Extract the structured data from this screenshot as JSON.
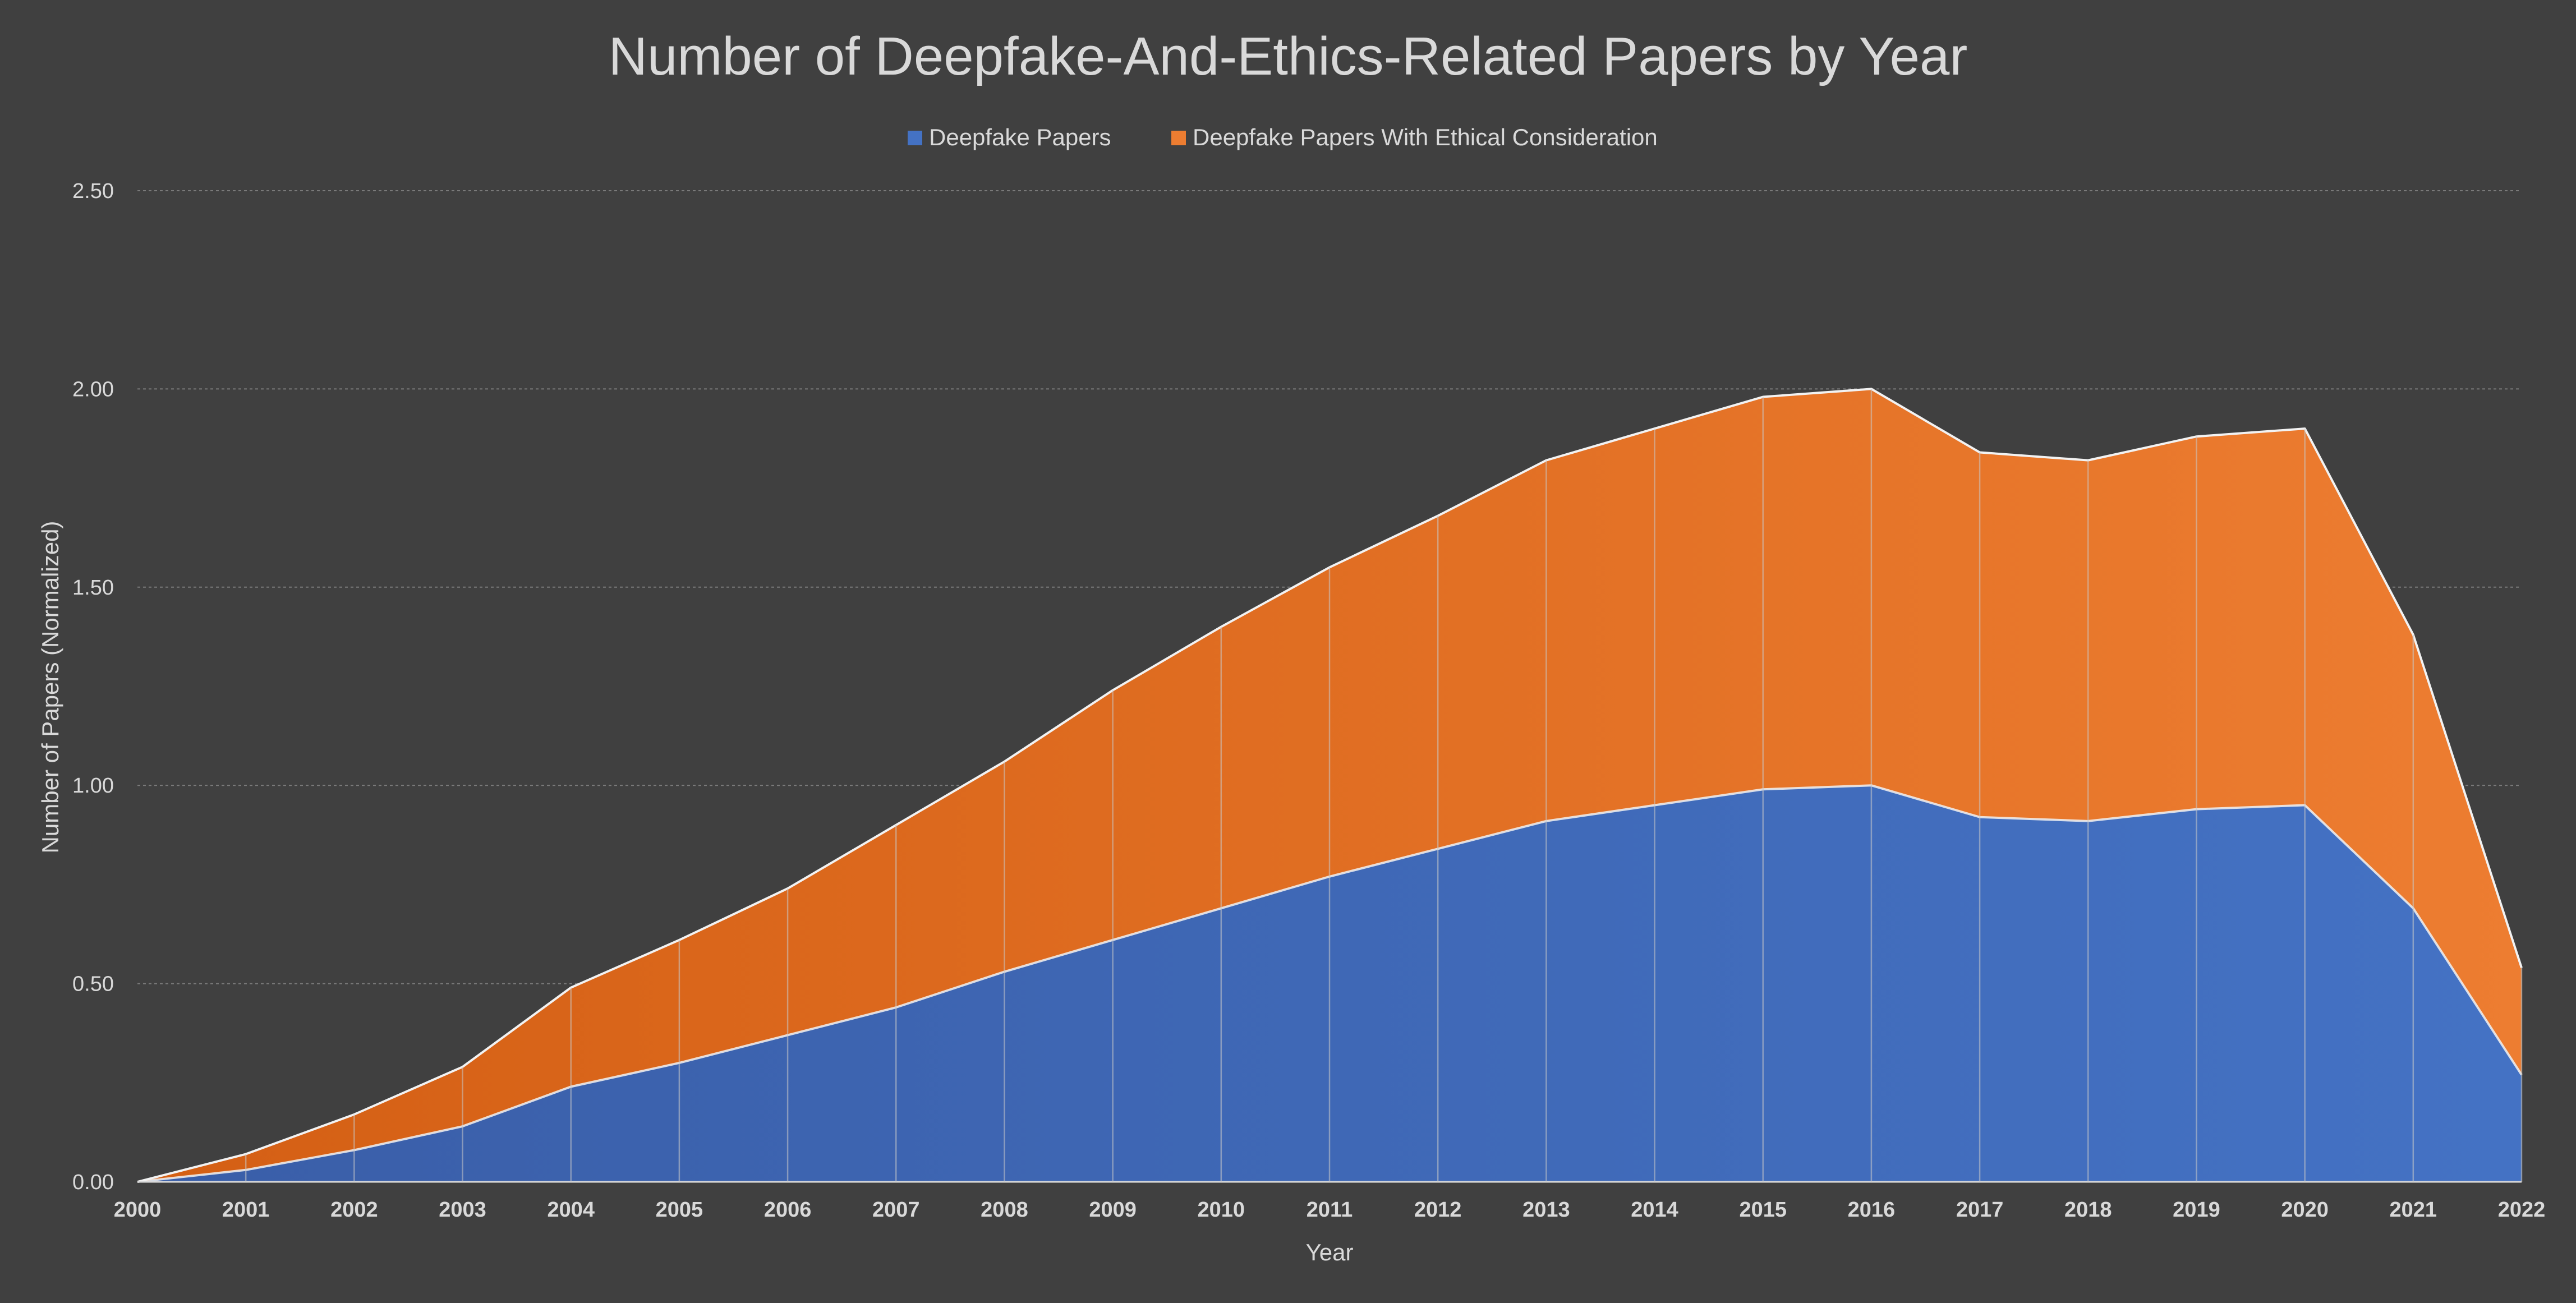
{
  "chart_data": {
    "type": "area",
    "stacked": true,
    "title": "Number of Deepfake-And-Ethics-Related Papers by Year",
    "xlabel": "Year",
    "ylabel": "Number of Papers (Normalized)",
    "ylim": [
      0,
      2.5
    ],
    "yticks": [
      "0.00",
      "0.50",
      "1.00",
      "1.50",
      "2.00",
      "2.50"
    ],
    "grid": true,
    "legend_position": "top",
    "categories": [
      "2000",
      "2001",
      "2002",
      "2003",
      "2004",
      "2005",
      "2006",
      "2007",
      "2008",
      "2009",
      "2010",
      "2011",
      "2012",
      "2013",
      "2014",
      "2015",
      "2016",
      "2017",
      "2018",
      "2019",
      "2020",
      "2021",
      "2022"
    ],
    "series": [
      {
        "name": "Deepfake Papers",
        "color": "#4472c4",
        "values": [
          0,
          0.03,
          0.08,
          0.14,
          0.24,
          0.3,
          0.37,
          0.44,
          0.53,
          0.61,
          0.69,
          0.77,
          0.84,
          0.91,
          0.95,
          0.99,
          1.0,
          0.92,
          0.91,
          0.94,
          0.95,
          0.69,
          0.27
        ]
      },
      {
        "name": "Deepfake Papers With Ethical Consideration",
        "color": "#ed7d31",
        "values": [
          0,
          0.04,
          0.09,
          0.15,
          0.25,
          0.31,
          0.37,
          0.46,
          0.53,
          0.63,
          0.71,
          0.78,
          0.84,
          0.91,
          0.95,
          0.99,
          1.0,
          0.92,
          0.91,
          0.94,
          0.95,
          0.69,
          0.27
        ]
      }
    ]
  }
}
